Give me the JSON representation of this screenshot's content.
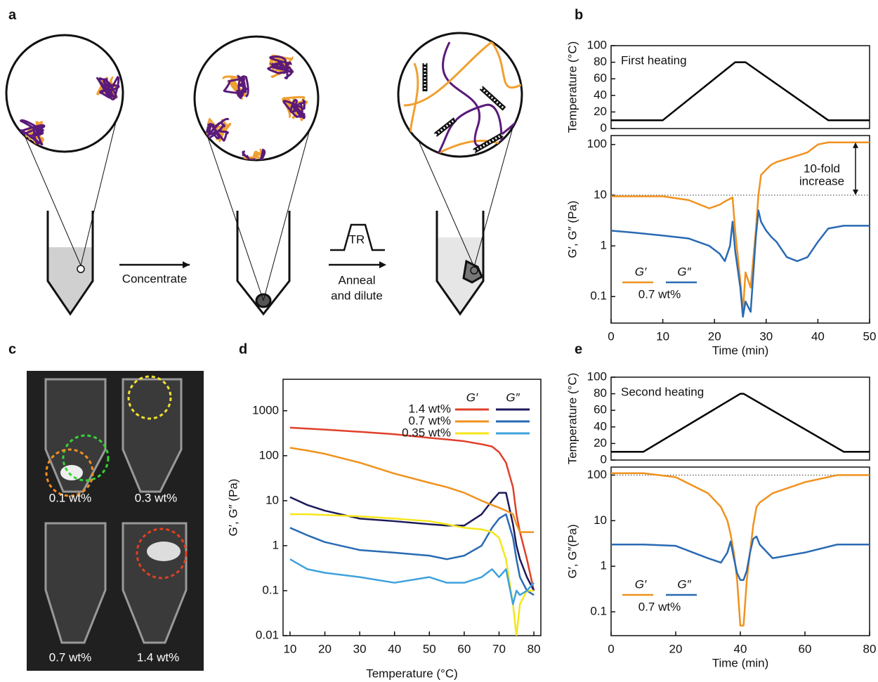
{
  "panel_labels": [
    "a",
    "b",
    "c",
    "d",
    "e"
  ],
  "diagram": {
    "steps": [
      "Concentrate",
      "TR",
      "Anneal",
      "and dilute"
    ]
  },
  "photos": {
    "labels": [
      "0.1 wt%",
      "0.3 wt%",
      "0.7 wt%",
      "1.4 wt%"
    ]
  },
  "chart_data": [
    {
      "type": "line",
      "ylabel": "Temperature (°C)",
      "annotation": "First heating",
      "x": [
        0,
        10,
        24,
        26,
        42,
        50
      ],
      "values": [
        10,
        10,
        80,
        80,
        10,
        10
      ],
      "color": "#000000",
      "xlim": [
        0,
        50
      ],
      "ylim": [
        0,
        100
      ],
      "yticks": [
        0,
        20,
        40,
        60,
        80,
        100
      ]
    },
    {
      "type": "line",
      "log_y": true,
      "ylabel": "G′, G″ (Pa)",
      "xlabel": "Time (min)",
      "annotation": [
        "10-fold",
        "increase"
      ],
      "reference_line": 10,
      "legend_note": "0.7 wt%",
      "x": [
        0,
        5,
        10,
        15,
        19,
        21,
        22,
        23,
        23.5,
        24,
        25,
        25.5,
        26,
        27,
        28,
        28.5,
        29,
        30,
        31,
        32,
        34,
        36,
        38,
        40,
        42,
        45,
        50
      ],
      "series": [
        {
          "name": "G′",
          "color": "#f0921e",
          "values": [
            9.5,
            9.5,
            9.5,
            8,
            5.5,
            6.5,
            7.5,
            8.5,
            9,
            2,
            0.2,
            0.05,
            0.3,
            0.15,
            2,
            10,
            25,
            32,
            40,
            45,
            52,
            60,
            70,
            100,
            110,
            110,
            110
          ]
        },
        {
          "name": "G″",
          "color": "#2a6ab3",
          "values": [
            2,
            1.8,
            1.6,
            1.4,
            1,
            0.7,
            0.5,
            1,
            3,
            0.8,
            0.15,
            0.04,
            0.08,
            0.05,
            1.5,
            5,
            3,
            2,
            1.5,
            1.2,
            0.6,
            0.5,
            0.6,
            1.2,
            2.2,
            2.5,
            2.5
          ]
        }
      ],
      "xlim": [
        0,
        50
      ],
      "xticks": [
        0,
        10,
        20,
        30,
        40,
        50
      ],
      "ylim": [
        0.03,
        150
      ],
      "yticks": [
        0.1,
        1,
        10,
        100
      ]
    },
    {
      "type": "line",
      "log_y": true,
      "ylabel": "G′, G″ (Pa)",
      "xlabel": "Temperature (°C)",
      "x": [
        10,
        15,
        20,
        30,
        40,
        50,
        55,
        60,
        65,
        68,
        70,
        72,
        74,
        75,
        76,
        78,
        80
      ],
      "series": [
        {
          "name": "1.4 wt%",
          "modulus": "G′",
          "color": "#e0402a",
          "values": [
            420,
            400,
            380,
            340,
            300,
            250,
            230,
            210,
            180,
            160,
            120,
            70,
            20,
            5,
            2,
            0.5,
            0.1
          ]
        },
        {
          "name": "1.4 wt%",
          "modulus": "G″",
          "color": "#1c1a5a",
          "values": [
            12,
            8,
            6,
            4,
            3.5,
            3,
            2.8,
            2.8,
            5,
            10,
            15,
            15,
            3,
            1,
            0.5,
            0.2,
            0.1
          ]
        },
        {
          "name": "0.7 wt%",
          "modulus": "G′",
          "color": "#f0921e",
          "values": [
            150,
            130,
            110,
            70,
            40,
            25,
            20,
            15,
            10,
            8,
            7,
            6,
            5,
            3,
            2,
            2,
            2
          ]
        },
        {
          "name": "0.7 wt%",
          "modulus": "G″",
          "color": "#2a6ab3",
          "values": [
            2.5,
            1.7,
            1.2,
            0.8,
            0.7,
            0.6,
            0.5,
            0.6,
            1,
            2.5,
            4,
            5,
            1.5,
            0.5,
            0.2,
            0.1,
            0.08
          ]
        },
        {
          "name": "0.35 wt%",
          "modulus": "G′",
          "color": "#f5e61a",
          "values": [
            5,
            5,
            4.8,
            4.5,
            4,
            3.5,
            3,
            2.5,
            2.3,
            2,
            1.5,
            0.5,
            0.05,
            0.01,
            0.05,
            0.1,
            0.1
          ]
        },
        {
          "name": "0.35 wt%",
          "modulus": "G″",
          "color": "#3ea1dc",
          "values": [
            0.5,
            0.3,
            0.25,
            0.2,
            0.15,
            0.2,
            0.15,
            0.15,
            0.2,
            0.3,
            0.2,
            0.3,
            0.05,
            0.1,
            0.08,
            0.1,
            0.15
          ]
        }
      ],
      "xlim": [
        8,
        82
      ],
      "xticks": [
        10,
        20,
        30,
        40,
        50,
        60,
        70,
        80
      ],
      "ylim": [
        0.01,
        5000
      ],
      "yticks": [
        0.01,
        0.1,
        1,
        10,
        100,
        1000
      ]
    },
    {
      "type": "line",
      "ylabel": "Temperature (°C)",
      "annotation": "Second heating",
      "x": [
        0,
        10,
        40,
        41,
        72,
        80
      ],
      "values": [
        10,
        10,
        80,
        80,
        10,
        10
      ],
      "color": "#000000",
      "xlim": [
        0,
        80
      ],
      "ylim": [
        0,
        100
      ],
      "yticks": [
        0,
        20,
        40,
        60,
        80,
        100
      ]
    },
    {
      "type": "line",
      "log_y": true,
      "ylabel": "G′, G″(Pa)",
      "xlabel": "Time (min)",
      "reference_line": 100,
      "legend_note": "0.7 wt%",
      "x": [
        0,
        10,
        20,
        30,
        34,
        36,
        37,
        38,
        39,
        40,
        41,
        42,
        43,
        44,
        45,
        46,
        50,
        60,
        70,
        80
      ],
      "series": [
        {
          "name": "G′",
          "color": "#f0921e",
          "values": [
            110,
            110,
            90,
            40,
            20,
            10,
            5,
            2,
            0.5,
            0.05,
            0.05,
            0.5,
            2,
            8,
            20,
            25,
            40,
            70,
            100,
            100
          ]
        },
        {
          "name": "G″",
          "color": "#2a6ab3",
          "values": [
            3,
            3,
            2.8,
            1.5,
            1.2,
            2,
            3.5,
            1.5,
            0.7,
            0.5,
            0.5,
            0.8,
            2,
            4,
            4.5,
            3,
            1.5,
            2,
            3,
            3
          ]
        }
      ],
      "xlim": [
        0,
        80
      ],
      "xticks": [
        0,
        20,
        40,
        60,
        80
      ],
      "ylim": [
        0.03,
        150
      ],
      "yticks": [
        0.1,
        1,
        10,
        100
      ]
    }
  ]
}
